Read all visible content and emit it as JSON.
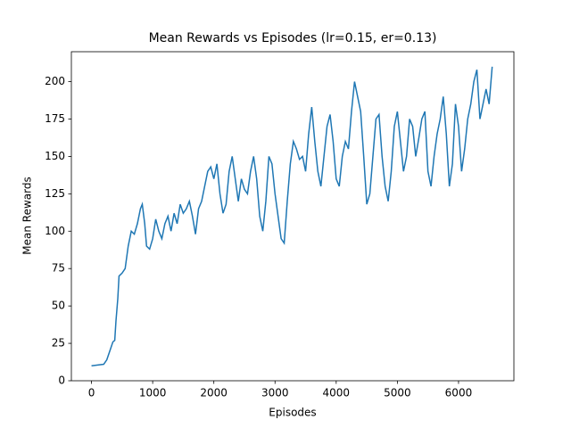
{
  "chart_data": {
    "type": "line",
    "title": "Mean Rewards vs Episodes (lr=0.15, er=0.13)",
    "xlabel": "Episodes",
    "ylabel": "Mean Rewards",
    "x": [
      0,
      100,
      200,
      250,
      300,
      350,
      380,
      400,
      430,
      450,
      500,
      550,
      600,
      650,
      700,
      750,
      800,
      830,
      870,
      900,
      950,
      1000,
      1050,
      1100,
      1150,
      1200,
      1250,
      1300,
      1350,
      1400,
      1450,
      1500,
      1550,
      1600,
      1650,
      1700,
      1750,
      1800,
      1850,
      1900,
      1950,
      2000,
      2050,
      2100,
      2150,
      2200,
      2250,
      2300,
      2350,
      2400,
      2450,
      2500,
      2550,
      2600,
      2650,
      2700,
      2750,
      2800,
      2850,
      2900,
      2950,
      3000,
      3050,
      3100,
      3150,
      3200,
      3250,
      3300,
      3350,
      3400,
      3450,
      3500,
      3550,
      3600,
      3650,
      3700,
      3750,
      3800,
      3850,
      3900,
      3950,
      4000,
      4050,
      4100,
      4150,
      4200,
      4250,
      4300,
      4350,
      4400,
      4450,
      4500,
      4550,
      4600,
      4650,
      4700,
      4750,
      4800,
      4850,
      4900,
      4950,
      5000,
      5050,
      5100,
      5150,
      5200,
      5250,
      5300,
      5350,
      5400,
      5450,
      5500,
      5550,
      5600,
      5650,
      5700,
      5750,
      5800,
      5850,
      5900,
      5950,
      6000,
      6050,
      6100,
      6150,
      6200,
      6250,
      6300,
      6350,
      6400,
      6450,
      6500,
      6550
    ],
    "series": [
      {
        "name": "Mean Rewards",
        "color": "#1f77b4",
        "values": [
          10,
          10.5,
          11,
          14,
          20,
          26,
          27,
          40,
          55,
          70,
          72,
          75,
          90,
          100,
          98,
          105,
          115,
          118,
          105,
          90,
          88,
          95,
          108,
          100,
          95,
          105,
          110,
          100,
          112,
          105,
          118,
          112,
          115,
          120,
          110,
          98,
          115,
          120,
          130,
          140,
          143,
          135,
          145,
          125,
          112,
          118,
          140,
          150,
          135,
          120,
          135,
          128,
          125,
          140,
          150,
          135,
          110,
          100,
          120,
          150,
          145,
          125,
          110,
          95,
          92,
          120,
          145,
          160,
          155,
          148,
          150,
          140,
          165,
          183,
          160,
          140,
          130,
          150,
          170,
          178,
          160,
          135,
          130,
          150,
          160,
          155,
          180,
          200,
          190,
          180,
          150,
          118,
          125,
          150,
          175,
          178,
          150,
          130,
          120,
          140,
          170,
          180,
          160,
          140,
          150,
          175,
          170,
          150,
          162,
          175,
          180,
          140,
          130,
          150,
          165,
          175,
          190,
          165,
          130,
          145,
          185,
          170,
          140,
          155,
          175,
          185,
          200,
          208,
          175,
          185,
          195,
          185,
          210
        ]
      }
    ],
    "xlim": [
      -329,
      6905
    ],
    "ylim": [
      0,
      220
    ],
    "xticks": [
      0,
      1000,
      2000,
      3000,
      4000,
      5000,
      6000
    ],
    "yticks": [
      0,
      25,
      50,
      75,
      100,
      125,
      150,
      175,
      200
    ]
  }
}
